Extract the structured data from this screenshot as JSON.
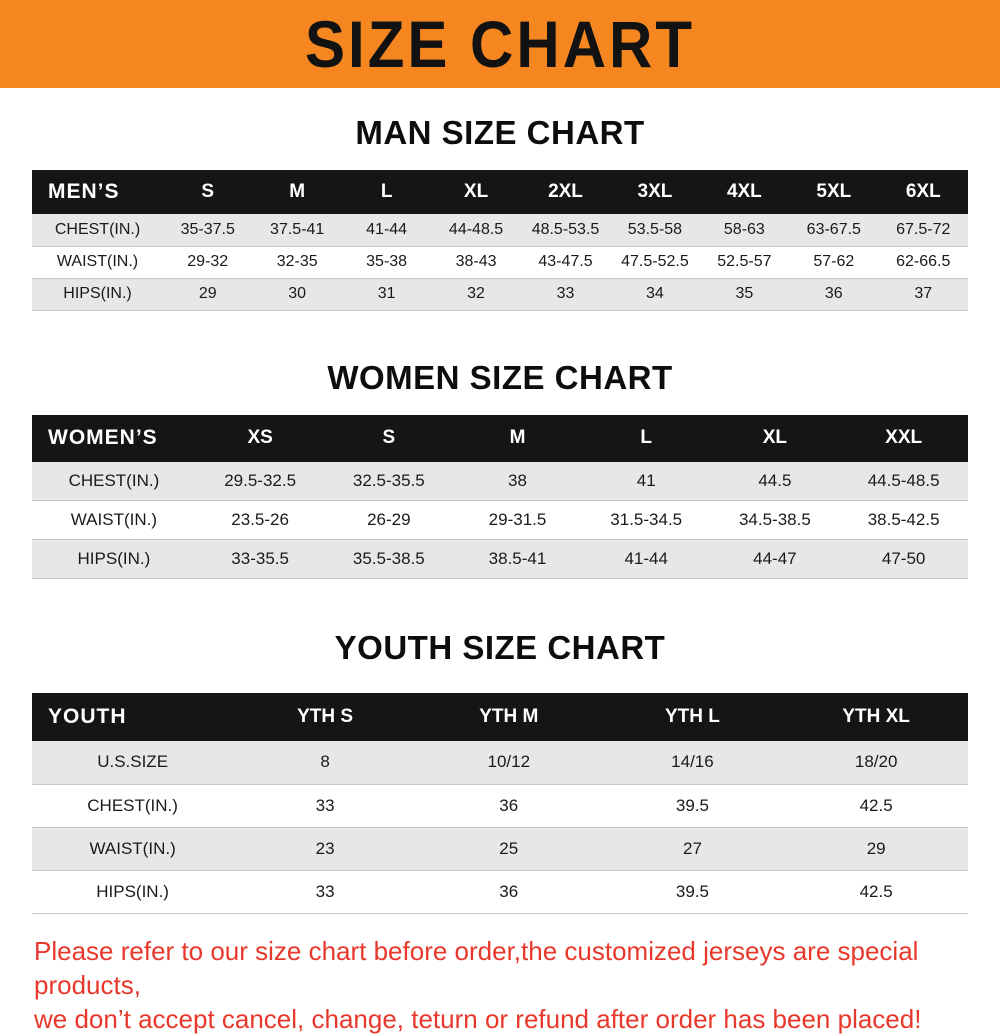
{
  "banner": {
    "title": "SIZE CHART",
    "bg_color": "#f6861f",
    "text_color": "#121212"
  },
  "chart_data": [
    {
      "type": "table",
      "title": "MAN SIZE CHART",
      "columns": [
        "MEN’S",
        "S",
        "M",
        "L",
        "XL",
        "2XL",
        "3XL",
        "4XL",
        "5XL",
        "6XL"
      ],
      "rows": [
        [
          "CHEST(IN.)",
          "35-37.5",
          "37.5-41",
          "41-44",
          "44-48.5",
          "48.5-53.5",
          "53.5-58",
          "58-63",
          "63-67.5",
          "67.5-72"
        ],
        [
          "WAIST(IN.)",
          "29-32",
          "32-35",
          "35-38",
          "38-43",
          "43-47.5",
          "47.5-52.5",
          "52.5-57",
          "57-62",
          "62-66.5"
        ],
        [
          "HIPS(IN.)",
          "29",
          "30",
          "31",
          "32",
          "33",
          "34",
          "35",
          "36",
          "37"
        ]
      ]
    },
    {
      "type": "table",
      "title": "WOMEN SIZE CHART",
      "columns": [
        "WOMEN’S",
        "XS",
        "S",
        "M",
        "L",
        "XL",
        "XXL"
      ],
      "rows": [
        [
          "CHEST(IN.)",
          "29.5-32.5",
          "32.5-35.5",
          "38",
          "41",
          "44.5",
          "44.5-48.5"
        ],
        [
          "WAIST(IN.)",
          "23.5-26",
          "26-29",
          "29-31.5",
          "31.5-34.5",
          "34.5-38.5",
          "38.5-42.5"
        ],
        [
          "HIPS(IN.)",
          "33-35.5",
          "35.5-38.5",
          "38.5-41",
          "41-44",
          "44-47",
          "47-50"
        ]
      ]
    },
    {
      "type": "table",
      "title": "YOUTH SIZE CHART",
      "columns": [
        "YOUTH",
        "YTH S",
        "YTH M",
        "YTH L",
        "YTH XL"
      ],
      "rows": [
        [
          "U.S.SIZE",
          "8",
          "10/12",
          "14/16",
          "18/20"
        ],
        [
          "CHEST(IN.)",
          "33",
          "36",
          "39.5",
          "42.5"
        ],
        [
          "WAIST(IN.)",
          "23",
          "25",
          "27",
          "29"
        ],
        [
          "HIPS(IN.)",
          "33",
          "36",
          "39.5",
          "42.5"
        ]
      ]
    }
  ],
  "footer_note": {
    "line1": "Please refer to our size chart before order,the customized jerseys are special products,",
    "line2": "we don’t accept cancel, change, teturn or refund after order has been placed!",
    "color": "#e8382b"
  }
}
